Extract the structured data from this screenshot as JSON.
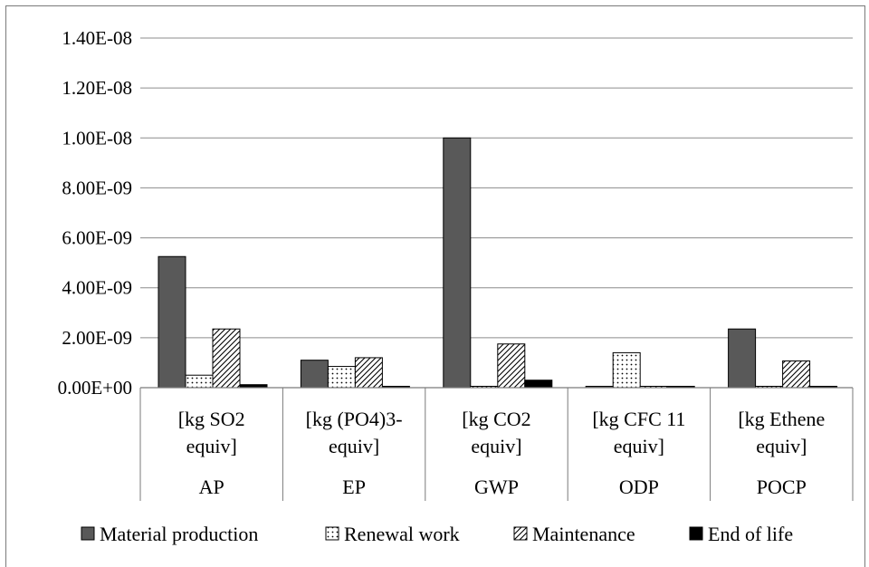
{
  "chart_data": {
    "type": "bar",
    "title": "",
    "xlabel": "",
    "ylabel": "",
    "ylim": [
      0,
      1.4e-08
    ],
    "y_ticks": [
      0,
      2e-09,
      4e-09,
      6e-09,
      8e-09,
      1e-08,
      1.2e-08,
      1.4e-08
    ],
    "y_tick_labels": [
      "0.00E+00",
      "2.00E-09",
      "4.00E-09",
      "6.00E-09",
      "8.00E-09",
      "1.00E-08",
      "1.20E-08",
      "1.40E-08"
    ],
    "grid": true,
    "legend_position": "bottom",
    "categories": [
      {
        "unit_line1": "[kg SO2",
        "unit_line2": "equiv]",
        "name": "AP"
      },
      {
        "unit_line1": "[kg (PO4)3-",
        "unit_line2": "equiv]",
        "name": "EP"
      },
      {
        "unit_line1": "[kg CO2",
        "unit_line2": "equiv]",
        "name": "GWP"
      },
      {
        "unit_line1": "[kg CFC 11",
        "unit_line2": "equiv]",
        "name": "ODP"
      },
      {
        "unit_line1": "[kg Ethene",
        "unit_line2": "equiv]",
        "name": "POCP"
      }
    ],
    "series": [
      {
        "name": "Material production",
        "pattern": "solid-gray",
        "color": "#595959",
        "values": [
          5.25e-09,
          1.1e-09,
          1e-08,
          2e-11,
          2.35e-09
        ]
      },
      {
        "name": "Renewal work",
        "pattern": "dots",
        "color": "#ffffff",
        "values": [
          5e-10,
          8.5e-10,
          5e-11,
          1.4e-09,
          5e-11
        ]
      },
      {
        "name": "Maintenance",
        "pattern": "diagonal-hatch",
        "color": "#ffffff",
        "values": [
          2.35e-09,
          1.2e-09,
          1.75e-09,
          5e-11,
          1.07e-09
        ]
      },
      {
        "name": "End of life",
        "pattern": "solid-black",
        "color": "#000000",
        "values": [
          1.2e-10,
          2e-11,
          3e-10,
          2e-11,
          5e-11
        ]
      }
    ]
  }
}
